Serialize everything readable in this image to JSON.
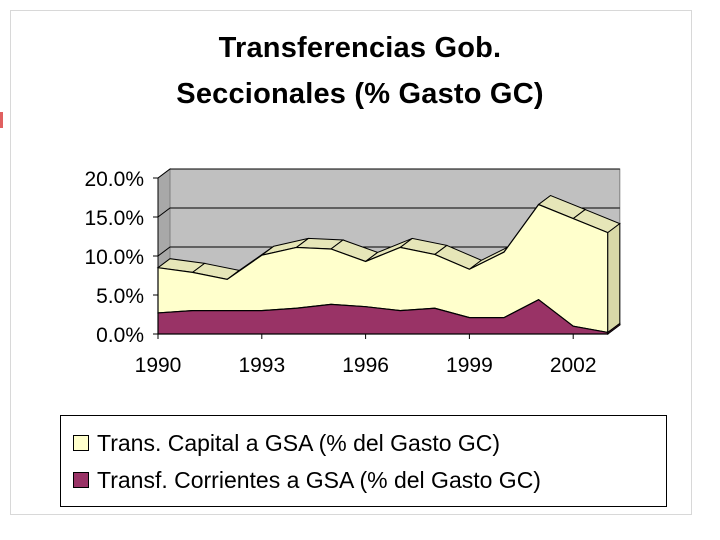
{
  "chart_data": {
    "type": "area",
    "title_lines": [
      "Transferencias Gob.",
      "Seccionales (% Gasto GC)"
    ],
    "stacked": true,
    "three_d": true,
    "x": [
      1990,
      1991,
      1992,
      1993,
      1994,
      1995,
      1996,
      1997,
      1998,
      1999,
      2000,
      2001,
      2002,
      2003
    ],
    "x_tick_labels": [
      "1990",
      "1993",
      "1996",
      "1999",
      "2002"
    ],
    "y_tick_labels": [
      "20.0%",
      "15.0%",
      "10.0%",
      "5.0%",
      "0.0%"
    ],
    "ylim": [
      0,
      20
    ],
    "grid": true,
    "legend_position": "bottom",
    "series": [
      {
        "name": "Transf. Corrientes a GSA (% del Gasto GC)",
        "color": "#993366",
        "values": [
          2.7,
          3.0,
          3.0,
          3.0,
          3.3,
          3.8,
          3.5,
          3.0,
          3.3,
          2.1,
          2.1,
          4.4,
          1.0,
          0.2
        ]
      },
      {
        "name": "Trans. Capital a GSA (% del Gasto GC)",
        "color": "#ffffcc",
        "values": [
          5.8,
          4.9,
          4.0,
          7.1,
          7.8,
          7.1,
          5.8,
          8.1,
          6.9,
          6.2,
          8.4,
          12.2,
          13.8,
          12.8
        ]
      }
    ],
    "legend": [
      {
        "label": "Trans. Capital a GSA (% del Gasto GC)",
        "color": "#ffffcc"
      },
      {
        "label": "Transf. Corrientes a GSA (% del Gasto GC)",
        "color": "#993366"
      }
    ]
  }
}
